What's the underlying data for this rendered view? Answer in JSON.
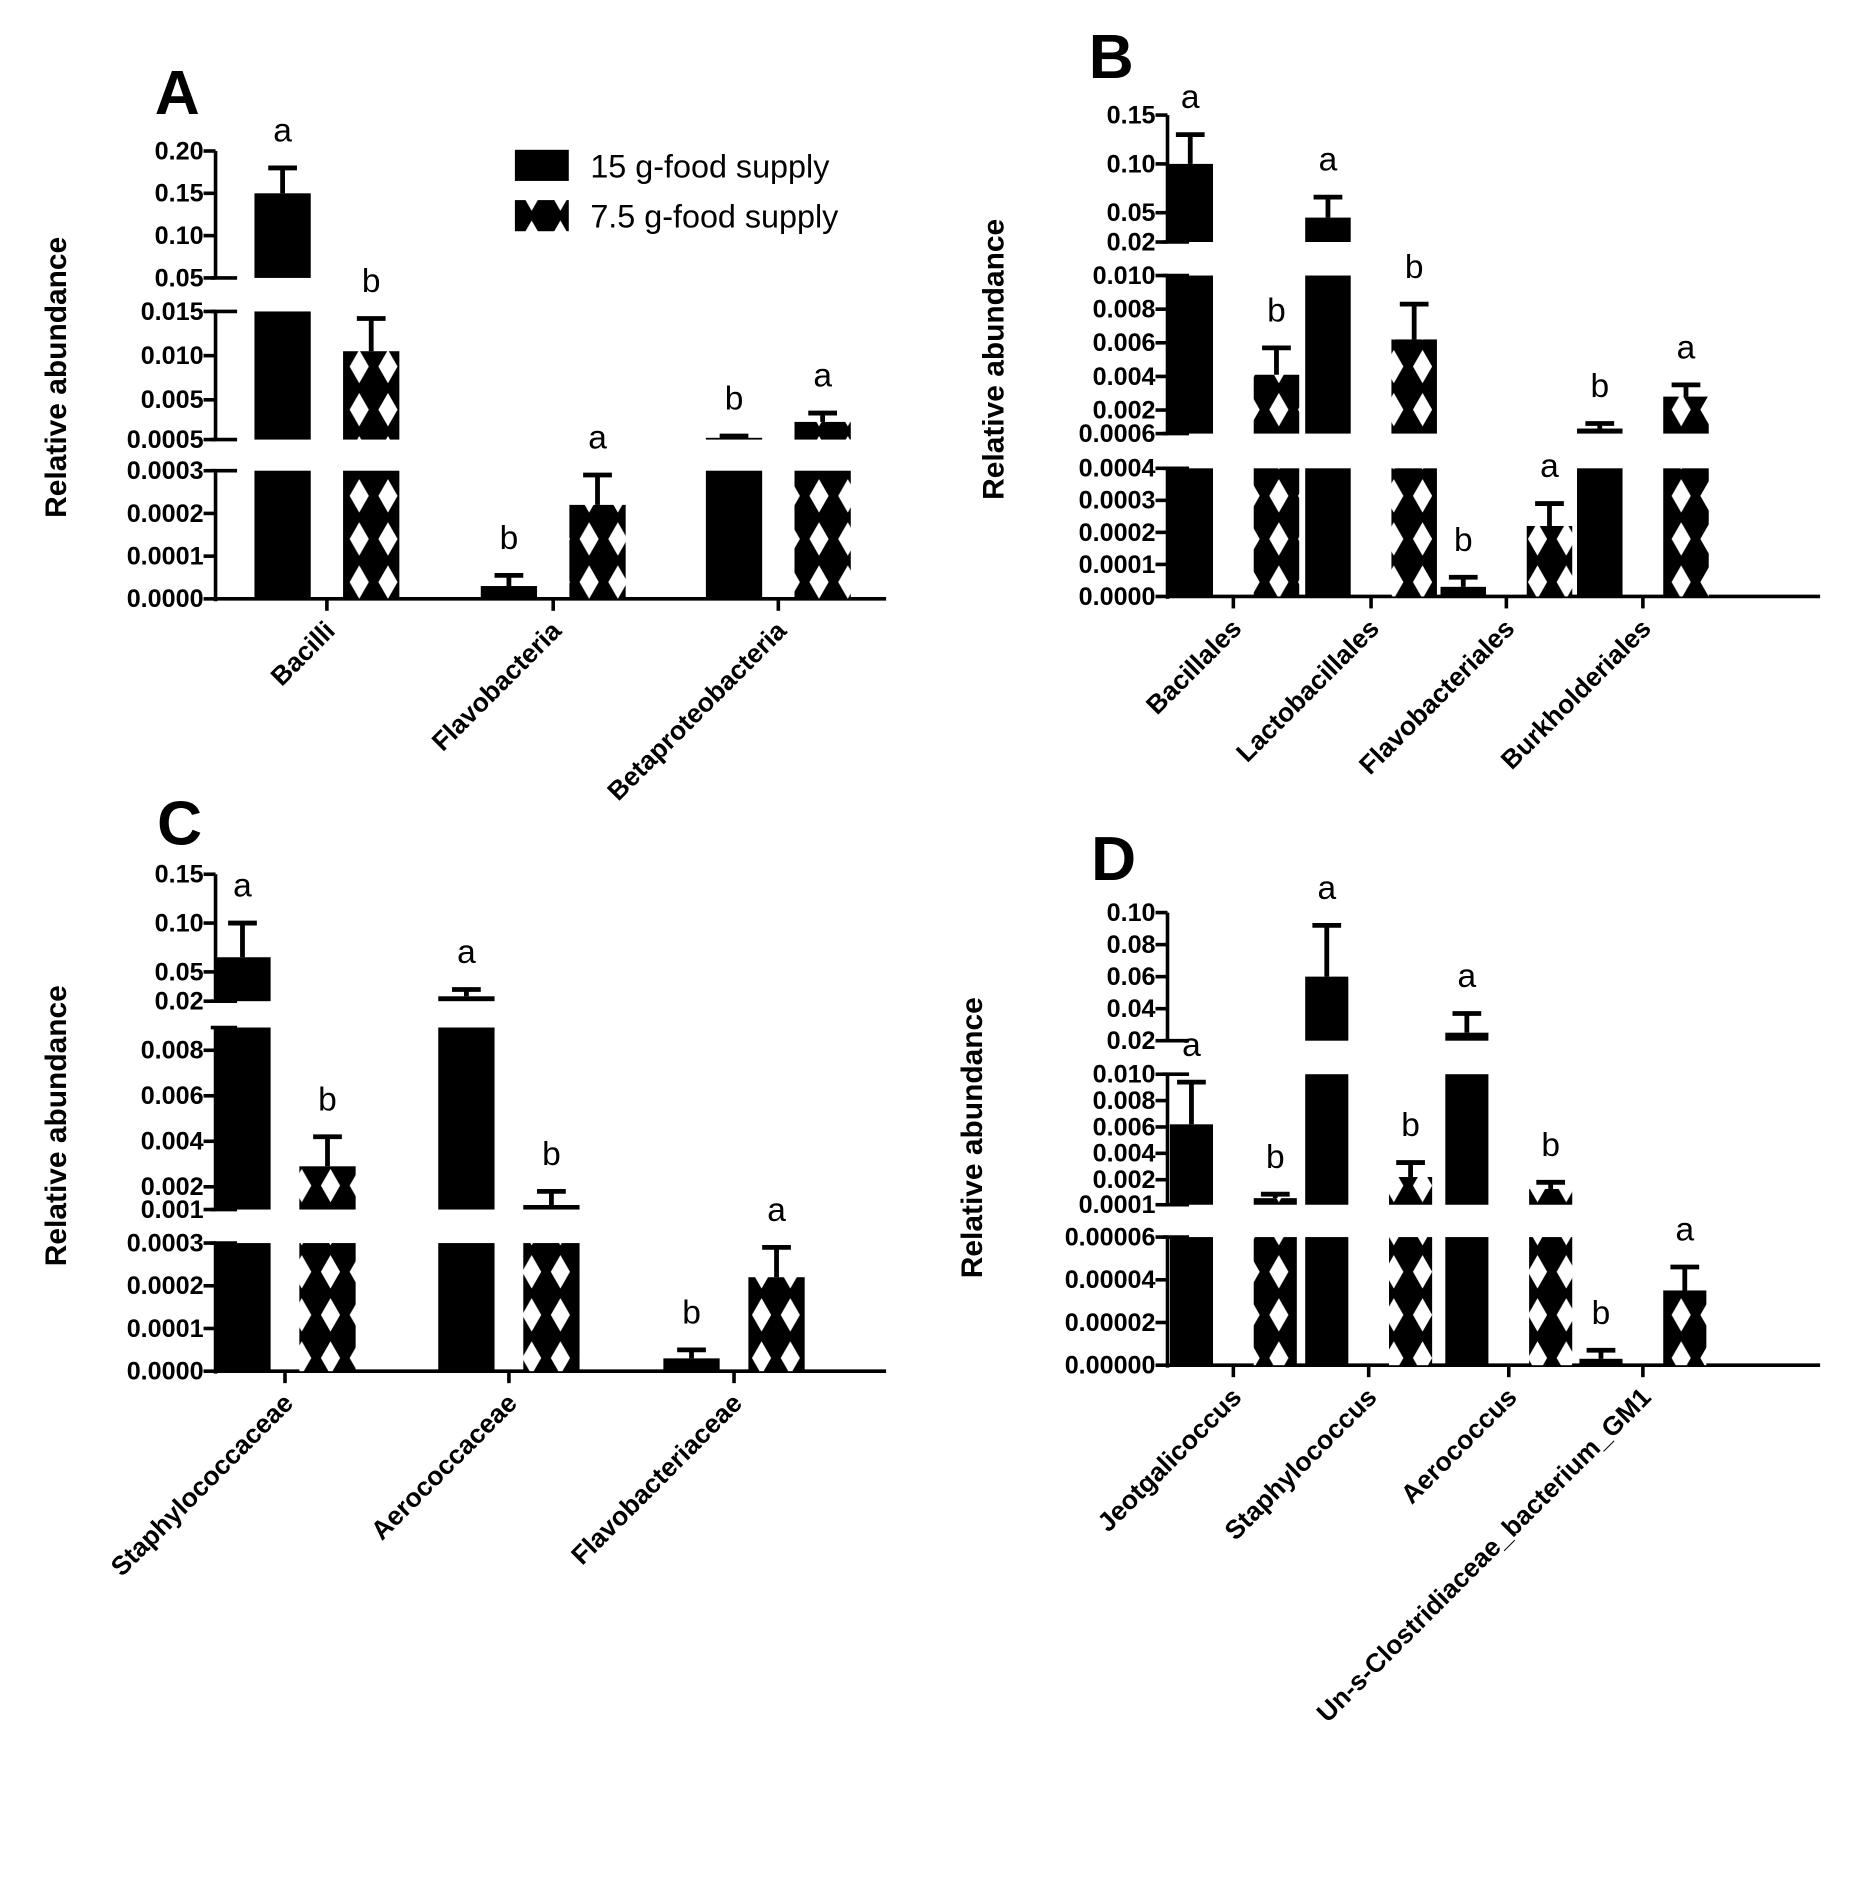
{
  "chart_data": [
    {
      "type": "bar",
      "panel": "A",
      "ylabel": "Relative abundance",
      "categories": [
        "Bacilli",
        "Flavobacteria",
        "Betaproteobacteria"
      ],
      "y_segments": [
        {
          "range": [
            0,
            0.0003
          ],
          "ticks": [
            "0.0000",
            "0.0001",
            "0.0002",
            "0.0003"
          ]
        },
        {
          "range": [
            0.0005,
            0.015
          ],
          "ticks": [
            "0.0005",
            "0.005",
            "0.010",
            "0.015"
          ]
        },
        {
          "range": [
            0.05,
            0.2
          ],
          "ticks": [
            "0.05",
            "0.10",
            "0.15",
            "0.20"
          ]
        }
      ],
      "series": [
        {
          "name": "15 g-food supply",
          "values": [
            0.15,
            3e-05,
            0.0007
          ],
          "err_top": [
            0.18,
            5.5e-05,
            0.0009
          ],
          "letters": [
            "a",
            "b",
            "b"
          ]
        },
        {
          "name": "7.5 g-food supply",
          "values": [
            0.0105,
            0.00022,
            0.0025
          ],
          "err_top": [
            0.0142,
            0.00029,
            0.0035
          ],
          "letters": [
            "b",
            "a",
            "a"
          ]
        }
      ],
      "legend": [
        "15 g-food supply",
        "7.5 g-food supply"
      ]
    },
    {
      "type": "bar",
      "panel": "B",
      "ylabel": "Relative abundance",
      "categories": [
        "Bacillales",
        "Lactobacillales",
        "Flavobacteriales",
        "Burkholderiales"
      ],
      "y_segments": [
        {
          "range": [
            0,
            0.0004
          ],
          "ticks": [
            "0.0000",
            "0.0001",
            "0.0002",
            "0.0003",
            "0.0004"
          ]
        },
        {
          "range": [
            0.0006,
            0.01
          ],
          "ticks": [
            "0.0006",
            "0.002",
            "0.004",
            "0.006",
            "0.008",
            "0.010"
          ]
        },
        {
          "range": [
            0.02,
            0.15
          ],
          "ticks": [
            "0.02",
            "0.05",
            "0.10",
            "0.15"
          ]
        }
      ],
      "series": [
        {
          "name": "15 g-food supply",
          "values": [
            0.1,
            0.045,
            3e-05,
            0.0009
          ],
          "err_top": [
            0.13,
            0.066,
            6e-05,
            0.0012
          ],
          "letters": [
            "a",
            "a",
            "b",
            "b"
          ]
        },
        {
          "name": "7.5 g-food supply",
          "values": [
            0.0041,
            0.0062,
            0.00022,
            0.0028
          ],
          "err_top": [
            0.0057,
            0.0083,
            0.00029,
            0.0035
          ],
          "letters": [
            "b",
            "b",
            "a",
            "a"
          ]
        }
      ]
    },
    {
      "type": "bar",
      "panel": "C",
      "ylabel": "Relative abundance",
      "categories": [
        "Staphylococcaceae",
        "Aerococcaceae",
        "Flavobacteriaceae"
      ],
      "y_segments": [
        {
          "range": [
            0,
            0.0003
          ],
          "ticks": [
            "0.0000",
            "0.0001",
            "0.0002",
            "0.0003"
          ]
        },
        {
          "range": [
            0.001,
            0.009
          ],
          "ticks": [
            "0.001",
            "0.002",
            "0.004",
            "0.006",
            "0.008"
          ]
        },
        {
          "range": [
            0.02,
            0.15
          ],
          "ticks": [
            "0.02",
            "0.05",
            "0.10",
            "0.15"
          ]
        }
      ],
      "series": [
        {
          "name": "15 g-food supply",
          "values": [
            0.065,
            0.025,
            3e-05
          ],
          "err_top": [
            0.1,
            0.032,
            5e-05
          ],
          "letters": [
            "a",
            "a",
            "b"
          ]
        },
        {
          "name": "7.5 g-food supply",
          "values": [
            0.0029,
            0.0012,
            0.00022
          ],
          "err_top": [
            0.0042,
            0.0018,
            0.00029
          ],
          "letters": [
            "b",
            "b",
            "a"
          ]
        }
      ]
    },
    {
      "type": "bar",
      "panel": "D",
      "ylabel": "Relative abundance",
      "categories": [
        "Jeotgalicoccus",
        "Staphylococcus",
        "Aerococcus",
        "Un-s-Clostridiaceae_bacterium_GM1"
      ],
      "y_segments": [
        {
          "range": [
            0,
            6e-05
          ],
          "ticks": [
            "0.00000",
            "0.00002",
            "0.00004",
            "0.00006"
          ]
        },
        {
          "range": [
            0.0001,
            0.01
          ],
          "ticks": [
            "0.0001",
            "0.002",
            "0.004",
            "0.006",
            "0.008",
            "0.010"
          ]
        },
        {
          "range": [
            0.02,
            0.1
          ],
          "ticks": [
            "0.02",
            "0.04",
            "0.06",
            "0.08",
            "0.10"
          ]
        }
      ],
      "series": [
        {
          "name": "15 g-food supply",
          "values": [
            0.0062,
            0.06,
            0.025,
            3e-06
          ],
          "err_top": [
            0.0094,
            0.092,
            0.037,
            7e-06
          ],
          "letters": [
            "a",
            "a",
            "a",
            "b"
          ]
        },
        {
          "name": "7.5 g-food supply",
          "values": [
            0.0006,
            0.0022,
            0.0013,
            3.5e-05
          ],
          "err_top": [
            0.0009,
            0.0033,
            0.0018,
            4.6e-05
          ],
          "letters": [
            "b",
            "b",
            "b",
            "a"
          ]
        }
      ]
    }
  ]
}
